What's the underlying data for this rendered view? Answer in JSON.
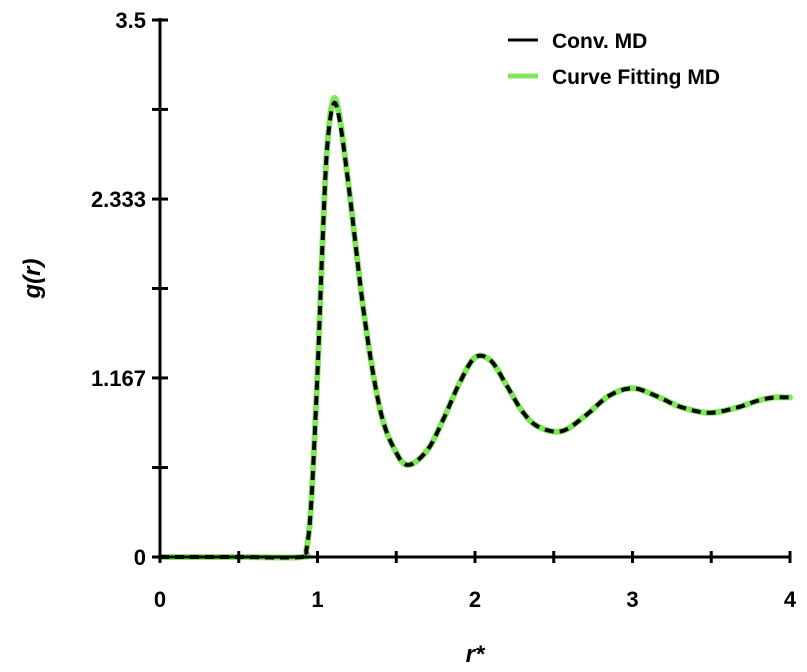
{
  "chart_data": {
    "type": "line",
    "title": "",
    "xlabel": "r*",
    "ylabel": "g(r)",
    "xlim": [
      0,
      4
    ],
    "ylim": [
      0,
      3.5
    ],
    "x_ticks": [
      0,
      1,
      2,
      3,
      4
    ],
    "x_tick_labels": [
      "0",
      "1",
      "2",
      "3",
      "4"
    ],
    "x_minor_ticks": [
      0.5,
      1.5,
      2.5,
      3.5
    ],
    "y_ticks": [
      0,
      1.167,
      2.333,
      3.5
    ],
    "y_tick_labels": [
      "0",
      "1.167",
      "2.333",
      "3.5"
    ],
    "y_minor_ticks": [
      0.583,
      1.75,
      2.917
    ],
    "grid": false,
    "legend_position": "top-right",
    "series": [
      {
        "name": "Conv. MD",
        "color": "#000000",
        "style": "solid",
        "x": [
          0,
          0.5,
          0.9,
          0.93,
          0.96,
          1.0,
          1.03,
          1.06,
          1.1,
          1.14,
          1.2,
          1.3,
          1.4,
          1.5,
          1.58,
          1.7,
          1.8,
          1.9,
          2.0,
          2.1,
          2.2,
          2.3,
          2.4,
          2.55,
          2.7,
          2.85,
          3.0,
          3.15,
          3.3,
          3.48,
          3.65,
          3.8,
          3.9,
          4.0
        ],
        "y": [
          0,
          0,
          0,
          0.05,
          0.35,
          1.2,
          2.0,
          2.65,
          2.95,
          2.85,
          2.4,
          1.55,
          0.95,
          0.68,
          0.6,
          0.7,
          0.9,
          1.13,
          1.3,
          1.28,
          1.12,
          0.95,
          0.85,
          0.82,
          0.92,
          1.05,
          1.1,
          1.05,
          0.98,
          0.94,
          0.97,
          1.02,
          1.04,
          1.04
        ]
      },
      {
        "name": "Curve Fitting MD",
        "color": "#7ee85a",
        "style": "solid",
        "x": [
          0,
          0.5,
          0.9,
          0.93,
          0.96,
          1.0,
          1.03,
          1.06,
          1.1,
          1.14,
          1.2,
          1.3,
          1.4,
          1.5,
          1.58,
          1.7,
          1.8,
          1.9,
          2.0,
          2.1,
          2.2,
          2.3,
          2.4,
          2.55,
          2.7,
          2.85,
          3.0,
          3.15,
          3.3,
          3.48,
          3.65,
          3.8,
          3.9,
          4.0
        ],
        "y": [
          0,
          0,
          0,
          0.05,
          0.35,
          1.2,
          2.0,
          2.65,
          2.98,
          2.87,
          2.4,
          1.55,
          0.95,
          0.68,
          0.6,
          0.7,
          0.9,
          1.13,
          1.3,
          1.28,
          1.12,
          0.95,
          0.85,
          0.82,
          0.92,
          1.05,
          1.1,
          1.05,
          0.98,
          0.94,
          0.97,
          1.02,
          1.04,
          1.04
        ]
      }
    ]
  }
}
